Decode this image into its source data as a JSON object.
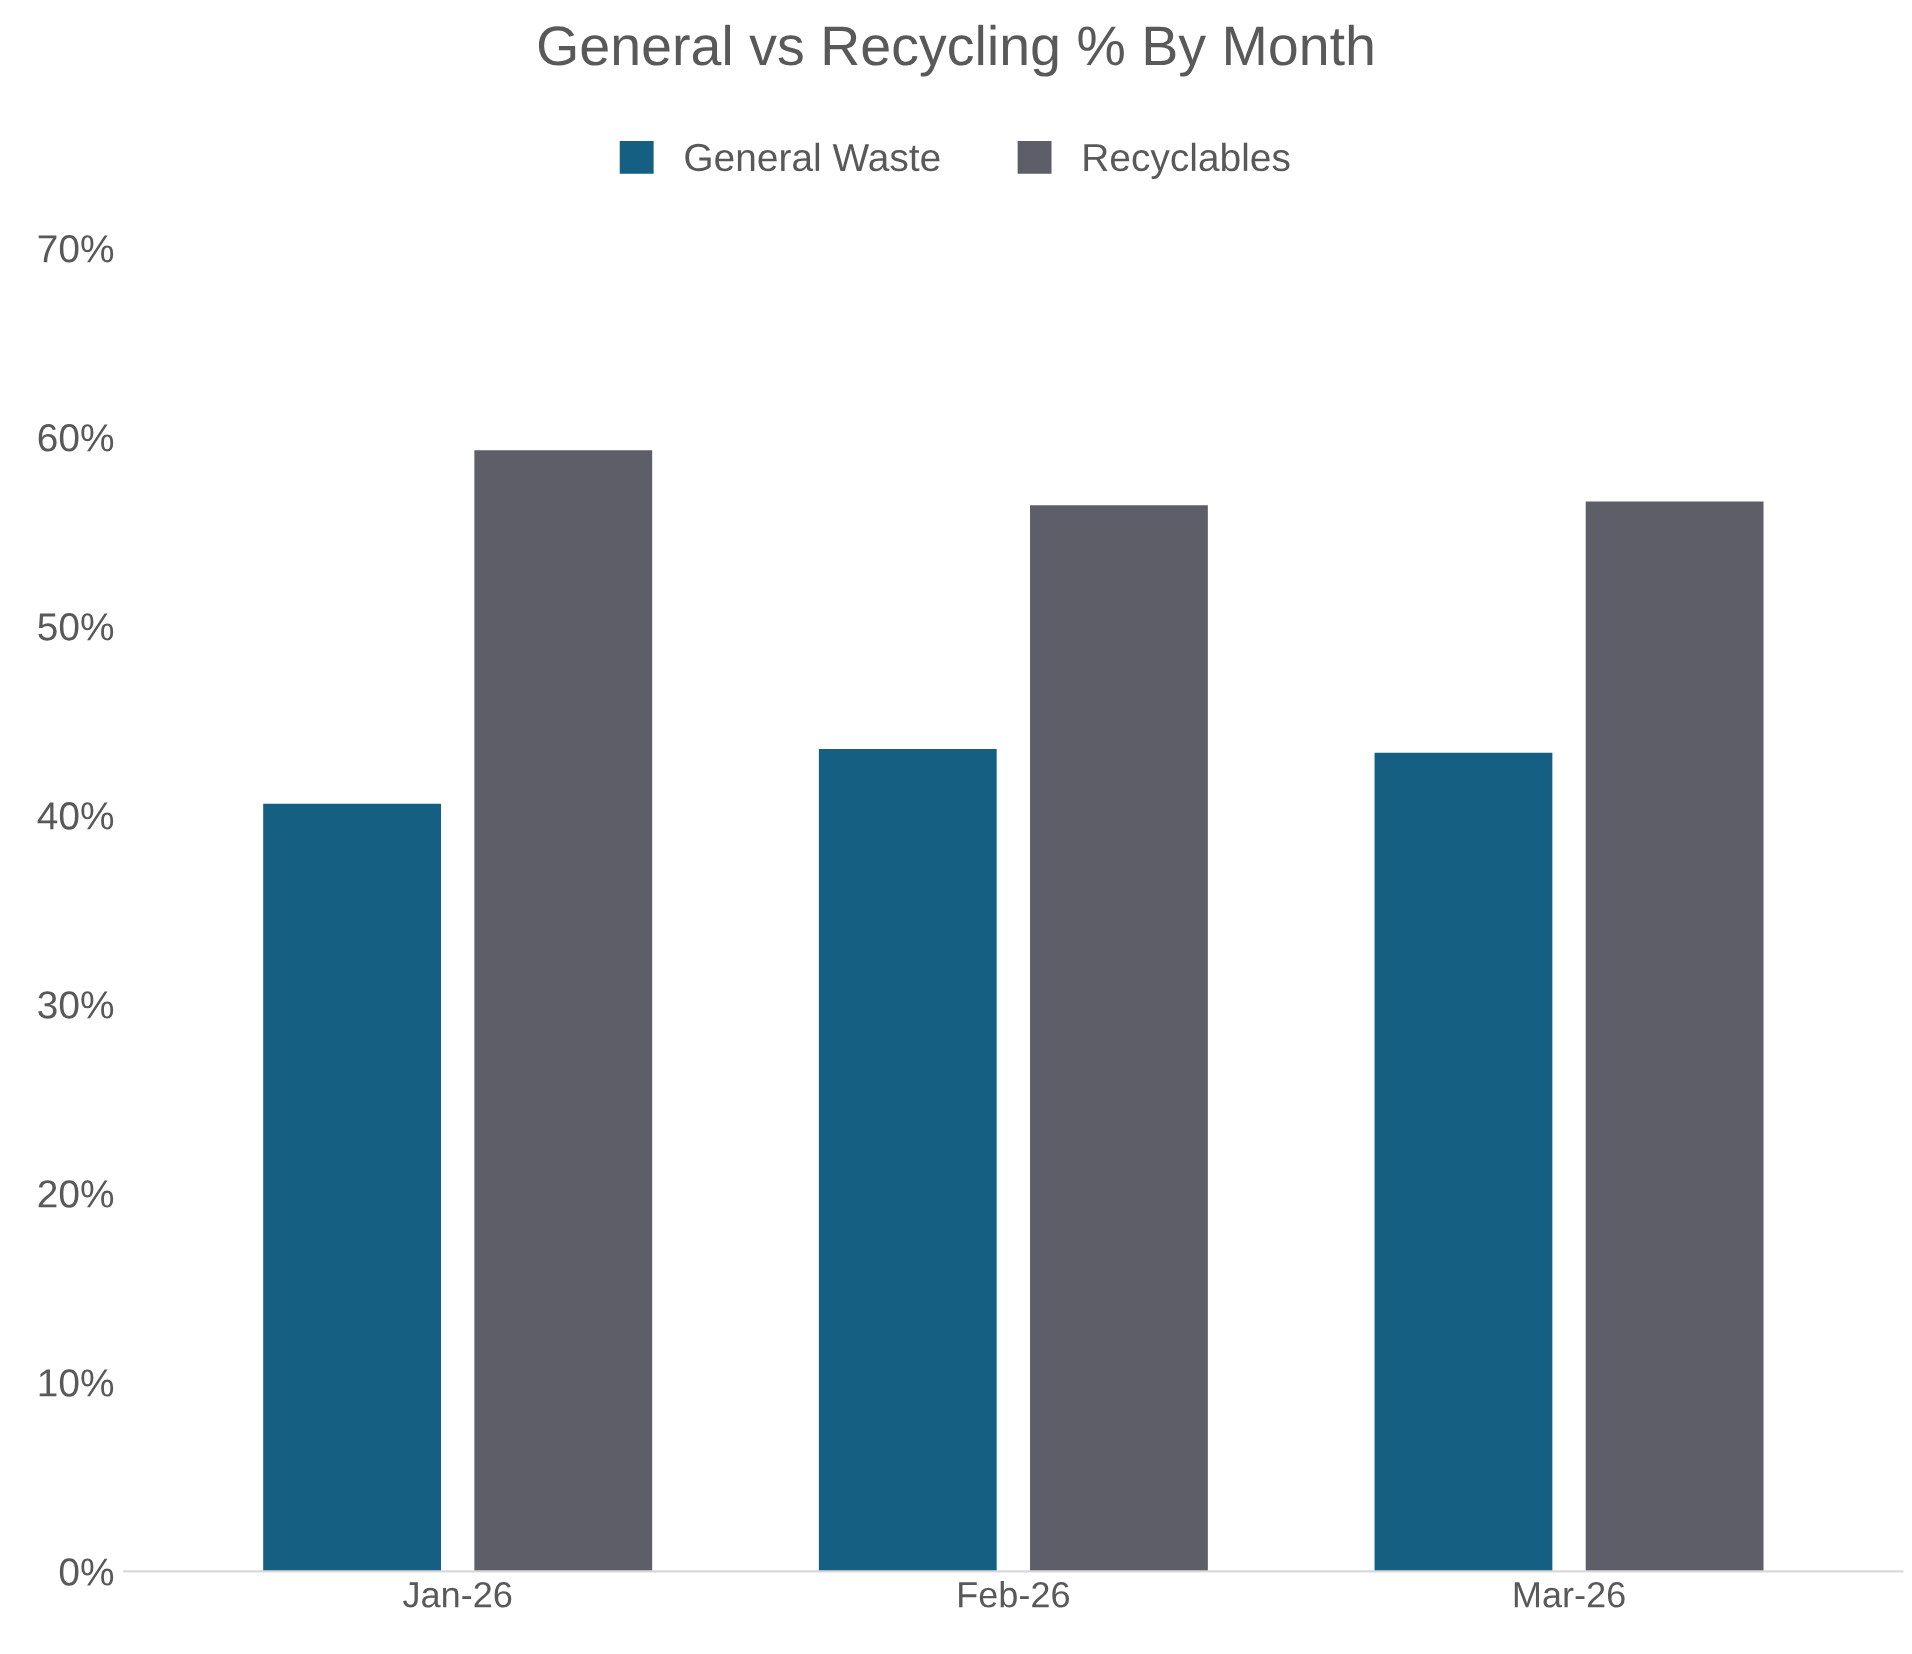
{
  "chart_data": {
    "type": "bar",
    "title": "General vs Recycling % By Month",
    "categories": [
      "Jan-26",
      "Feb-26",
      "Mar-26"
    ],
    "series": [
      {
        "name": "General Waste",
        "color": "#145f82",
        "values": [
          40.6,
          43.5,
          43.3
        ]
      },
      {
        "name": "Recyclables",
        "color": "#5e5e68",
        "values": [
          59.3,
          56.4,
          56.6
        ]
      }
    ],
    "ylim": [
      0,
      70
    ],
    "yticks": [
      {
        "value": 0,
        "label": "0%"
      },
      {
        "value": 10,
        "label": "10%"
      },
      {
        "value": 20,
        "label": "20%"
      },
      {
        "value": 30,
        "label": "30%"
      },
      {
        "value": 40,
        "label": "40%"
      },
      {
        "value": 50,
        "label": "50%"
      },
      {
        "value": 60,
        "label": "60%"
      },
      {
        "value": 70,
        "label": "70%"
      }
    ],
    "grid": false,
    "legend": "top"
  }
}
